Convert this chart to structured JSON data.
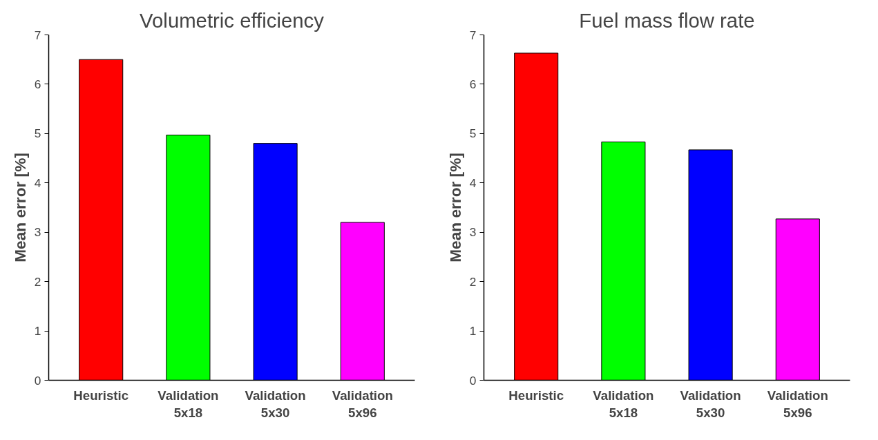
{
  "chart_data": [
    {
      "type": "bar",
      "title": "Volumetric efficiency",
      "ylabel": "Mean error [%]",
      "categories": [
        "Heuristic",
        "Validation 5x18",
        "Validation 5x30",
        "Validation 5x96"
      ],
      "values": [
        6.5,
        4.97,
        4.8,
        3.2
      ],
      "colors": [
        "#ff0000",
        "#00ff00",
        "#0000ff",
        "#ff00ff"
      ],
      "ylim": [
        0,
        7
      ],
      "yticks": [
        0,
        1,
        2,
        3,
        4,
        5,
        6,
        7
      ],
      "grid": false
    },
    {
      "type": "bar",
      "title": "Fuel mass flow rate",
      "ylabel": "Mean error [%]",
      "categories": [
        "Heuristic",
        "Validation 5x18",
        "Validation 5x30",
        "Validation 5x96"
      ],
      "values": [
        6.63,
        4.83,
        4.67,
        3.27
      ],
      "colors": [
        "#ff0000",
        "#00ff00",
        "#0000ff",
        "#ff00ff"
      ],
      "ylim": [
        0,
        7
      ],
      "yticks": [
        0,
        1,
        2,
        3,
        4,
        5,
        6,
        7
      ],
      "grid": false
    }
  ]
}
